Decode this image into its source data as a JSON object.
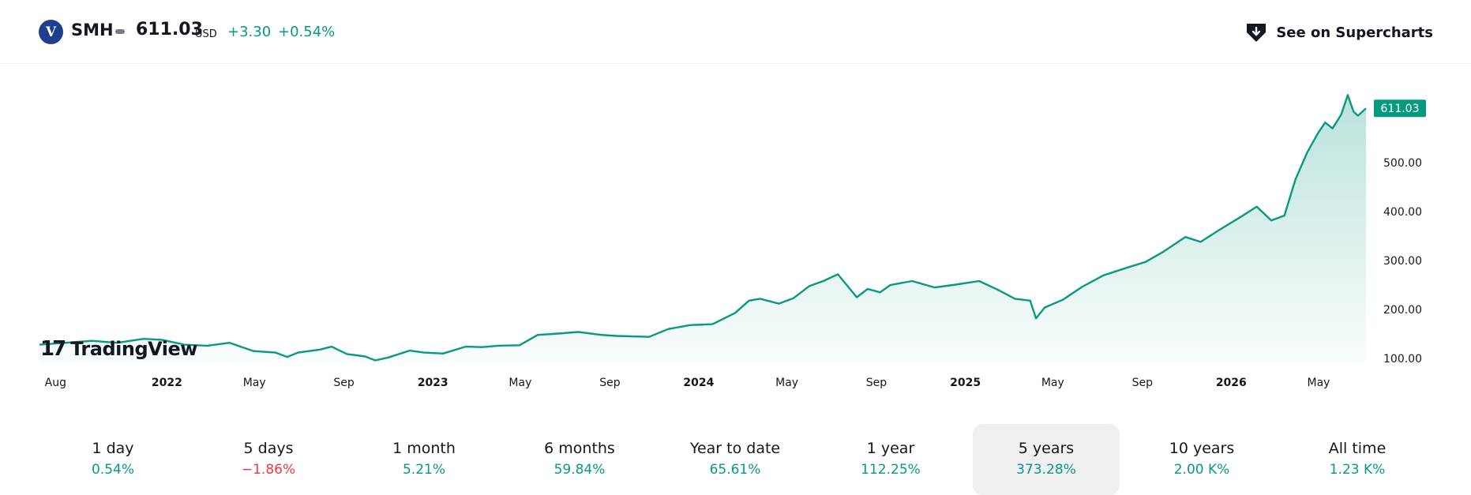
{
  "header": {
    "logo_letter": "V",
    "symbol": "SMH",
    "price": "611.03",
    "currency": "USD",
    "change_abs": "+3.30",
    "change_pct": "+0.54%",
    "supercharts_label": "See on Supercharts"
  },
  "watermark": "TradingView",
  "colors": {
    "line": "#089981",
    "positive": "#089981",
    "negative": "#f23645",
    "price_tag": "#089981"
  },
  "chart_data": {
    "type": "area",
    "x_unit": "date",
    "y_ticks": [
      100,
      200,
      300,
      400,
      500
    ],
    "y_tick_labels": [
      "100.00",
      "200.00",
      "300.00",
      "400.00",
      "500.00"
    ],
    "ylim": [
      100,
      640
    ],
    "x_range": [
      "2021-07-10",
      "2026-07-05"
    ],
    "x_ticks": [
      {
        "date": "2021-08-01",
        "label": "Aug",
        "bold": false
      },
      {
        "date": "2022-01-01",
        "label": "2022",
        "bold": true
      },
      {
        "date": "2022-05-01",
        "label": "May",
        "bold": false
      },
      {
        "date": "2022-09-01",
        "label": "Sep",
        "bold": false
      },
      {
        "date": "2023-01-01",
        "label": "2023",
        "bold": true
      },
      {
        "date": "2023-05-01",
        "label": "May",
        "bold": false
      },
      {
        "date": "2023-09-01",
        "label": "Sep",
        "bold": false
      },
      {
        "date": "2024-01-01",
        "label": "2024",
        "bold": true
      },
      {
        "date": "2024-05-01",
        "label": "May",
        "bold": false
      },
      {
        "date": "2024-09-01",
        "label": "Sep",
        "bold": false
      },
      {
        "date": "2025-01-01",
        "label": "2025",
        "bold": true
      },
      {
        "date": "2025-05-01",
        "label": "May",
        "bold": false
      },
      {
        "date": "2025-09-01",
        "label": "Sep",
        "bold": false
      },
      {
        "date": "2026-01-01",
        "label": "2026",
        "bold": true
      },
      {
        "date": "2026-05-01",
        "label": "May",
        "bold": false
      }
    ],
    "last_value_label": "611.03",
    "grid": false,
    "series": [
      {
        "points": [
          [
            "2021-07-10",
            128
          ],
          [
            "2021-08-15",
            132
          ],
          [
            "2021-09-20",
            136
          ],
          [
            "2021-10-25",
            132
          ],
          [
            "2021-11-30",
            140
          ],
          [
            "2021-12-25",
            138
          ],
          [
            "2022-01-25",
            128
          ],
          [
            "2022-02-25",
            126
          ],
          [
            "2022-03-28",
            132
          ],
          [
            "2022-04-30",
            115
          ],
          [
            "2022-05-30",
            112
          ],
          [
            "2022-06-15",
            103
          ],
          [
            "2022-06-30",
            112
          ],
          [
            "2022-07-30",
            118
          ],
          [
            "2022-08-15",
            124
          ],
          [
            "2022-09-05",
            109
          ],
          [
            "2022-09-30",
            104
          ],
          [
            "2022-10-14",
            96
          ],
          [
            "2022-11-01",
            102
          ],
          [
            "2022-11-30",
            116
          ],
          [
            "2022-12-20",
            112
          ],
          [
            "2023-01-15",
            110
          ],
          [
            "2023-02-15",
            124
          ],
          [
            "2023-03-10",
            123
          ],
          [
            "2023-04-01",
            126
          ],
          [
            "2023-04-30",
            127
          ],
          [
            "2023-05-25",
            148
          ],
          [
            "2023-06-15",
            150
          ],
          [
            "2023-07-20",
            154
          ],
          [
            "2023-08-20",
            148
          ],
          [
            "2023-09-10",
            146
          ],
          [
            "2023-10-25",
            144
          ],
          [
            "2023-11-20",
            160
          ],
          [
            "2023-12-20",
            168
          ],
          [
            "2024-01-20",
            170
          ],
          [
            "2024-02-20",
            193
          ],
          [
            "2024-03-10",
            218
          ],
          [
            "2024-03-25",
            222
          ],
          [
            "2024-04-20",
            212
          ],
          [
            "2024-05-10",
            223
          ],
          [
            "2024-06-01",
            248
          ],
          [
            "2024-06-20",
            258
          ],
          [
            "2024-07-10",
            272
          ],
          [
            "2024-08-05",
            225
          ],
          [
            "2024-08-20",
            242
          ],
          [
            "2024-09-06",
            235
          ],
          [
            "2024-09-20",
            250
          ],
          [
            "2024-10-20",
            258
          ],
          [
            "2024-11-20",
            245
          ],
          [
            "2024-12-15",
            250
          ],
          [
            "2025-01-20",
            258
          ],
          [
            "2025-02-15",
            240
          ],
          [
            "2025-03-10",
            222
          ],
          [
            "2025-03-31",
            218
          ],
          [
            "2025-04-08",
            182
          ],
          [
            "2025-04-20",
            204
          ],
          [
            "2025-05-15",
            220
          ],
          [
            "2025-06-10",
            246
          ],
          [
            "2025-07-10",
            270
          ],
          [
            "2025-08-10",
            285
          ],
          [
            "2025-09-05",
            297
          ],
          [
            "2025-09-30",
            318
          ],
          [
            "2025-10-30",
            348
          ],
          [
            "2025-11-20",
            338
          ],
          [
            "2025-12-15",
            362
          ],
          [
            "2026-01-15",
            390
          ],
          [
            "2026-02-05",
            410
          ],
          [
            "2026-02-25",
            382
          ],
          [
            "2026-03-15",
            392
          ],
          [
            "2026-03-30",
            465
          ],
          [
            "2026-04-15",
            520
          ],
          [
            "2026-04-30",
            560
          ],
          [
            "2026-05-10",
            582
          ],
          [
            "2026-05-20",
            570
          ],
          [
            "2026-06-01",
            598
          ],
          [
            "2026-06-10",
            638
          ],
          [
            "2026-06-18",
            604
          ],
          [
            "2026-06-24",
            596
          ],
          [
            "2026-07-05",
            611.03
          ]
        ]
      }
    ]
  },
  "periods": [
    {
      "label": "1 day",
      "value": "0.54%",
      "sign": "pos"
    },
    {
      "label": "5 days",
      "value": "−1.86%",
      "sign": "neg"
    },
    {
      "label": "1 month",
      "value": "5.21%",
      "sign": "pos"
    },
    {
      "label": "6 months",
      "value": "59.84%",
      "sign": "pos"
    },
    {
      "label": "Year to date",
      "value": "65.61%",
      "sign": "pos"
    },
    {
      "label": "1 year",
      "value": "112.25%",
      "sign": "pos"
    },
    {
      "label": "5 years",
      "value": "373.28%",
      "sign": "pos"
    },
    {
      "label": "10 years",
      "value": "2.00 K%",
      "sign": "pos"
    },
    {
      "label": "All time",
      "value": "1.23 K%",
      "sign": "pos"
    }
  ],
  "active_period": "5 years"
}
